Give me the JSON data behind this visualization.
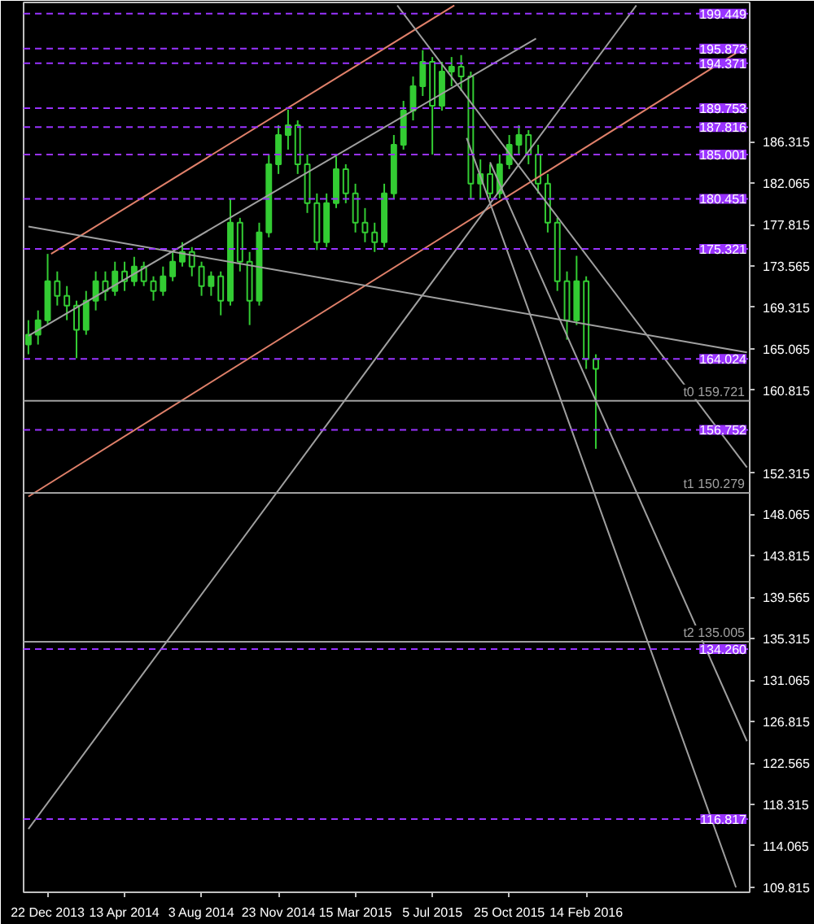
{
  "chart_data": {
    "type": "candlestick",
    "series": [
      {
        "color": "#33cc33",
        "x": [
          "2013-11-24",
          "2013-12-08",
          "2013-12-22",
          "2014-01-05",
          "2014-01-19",
          "2014-02-02",
          "2014-02-16",
          "2014-03-02",
          "2014-03-16",
          "2014-03-30",
          "2014-04-13",
          "2014-04-27",
          "2014-05-11",
          "2014-05-25",
          "2014-06-08",
          "2014-06-22",
          "2014-07-06",
          "2014-07-20",
          "2014-08-03",
          "2014-08-17",
          "2014-08-31",
          "2014-09-14",
          "2014-09-28",
          "2014-10-12",
          "2014-10-26",
          "2014-11-09",
          "2014-11-23",
          "2014-12-07",
          "2014-12-21",
          "2015-01-04",
          "2015-01-18",
          "2015-02-01",
          "2015-02-15",
          "2015-03-01",
          "2015-03-15",
          "2015-03-29",
          "2015-04-12",
          "2015-04-26",
          "2015-05-10",
          "2015-05-24",
          "2015-06-07",
          "2015-06-21",
          "2015-07-05",
          "2015-07-19",
          "2015-08-02",
          "2015-08-16",
          "2015-08-30",
          "2015-09-13",
          "2015-09-27",
          "2015-10-11",
          "2015-10-25",
          "2015-11-08",
          "2015-11-22",
          "2015-12-06",
          "2015-12-20",
          "2016-01-03",
          "2016-01-17",
          "2016-01-31",
          "2016-02-14",
          "2016-02-28"
        ],
        "ohlc": [
          [
            165.5,
            168,
            164.5,
            166.5
          ],
          [
            166.5,
            169,
            165.5,
            168
          ],
          [
            168,
            174.8,
            167.5,
            172
          ],
          [
            172,
            173,
            169.5,
            170.5
          ],
          [
            170.5,
            171.5,
            168,
            169.5
          ],
          [
            169.5,
            170,
            164.1,
            167
          ],
          [
            167,
            171,
            166.5,
            170
          ],
          [
            170,
            173,
            169,
            172
          ],
          [
            172,
            173,
            170,
            171
          ],
          [
            171,
            174,
            170.5,
            173
          ],
          [
            173,
            174,
            171,
            172
          ],
          [
            172,
            174.5,
            171.5,
            173.5
          ],
          [
            173.5,
            174,
            171.5,
            172
          ],
          [
            172,
            172.5,
            170,
            171
          ],
          [
            171,
            173.5,
            170.5,
            172.5
          ],
          [
            172.5,
            175,
            172,
            174
          ],
          [
            174,
            176,
            173.5,
            175
          ],
          [
            175,
            175.5,
            172.5,
            173.5
          ],
          [
            173.5,
            174,
            170.5,
            171.5
          ],
          [
            171.5,
            173,
            170.5,
            172.5
          ],
          [
            172.5,
            173,
            168.5,
            170
          ],
          [
            170,
            180.5,
            169.5,
            178
          ],
          [
            178,
            178.5,
            173,
            174
          ],
          [
            174,
            175,
            167.5,
            170
          ],
          [
            170,
            178,
            169.5,
            177
          ],
          [
            177,
            185,
            176.5,
            184
          ],
          [
            184,
            188,
            183,
            187
          ],
          [
            187,
            189.6,
            185.5,
            188
          ],
          [
            188,
            188.5,
            183,
            184
          ],
          [
            184,
            185,
            179,
            180
          ],
          [
            180,
            181,
            175.2,
            176
          ],
          [
            176,
            181,
            175.5,
            180
          ],
          [
            180,
            184.8,
            179.5,
            183.5
          ],
          [
            183.5,
            184,
            180,
            181
          ],
          [
            181,
            182,
            177,
            178
          ],
          [
            178,
            179.5,
            176,
            177
          ],
          [
            177,
            178,
            175,
            176
          ],
          [
            176,
            182,
            175.5,
            181
          ],
          [
            181,
            187,
            180.5,
            186
          ],
          [
            186,
            190.5,
            185.5,
            189.5
          ],
          [
            189.5,
            193,
            188.5,
            192
          ],
          [
            192,
            195.7,
            191,
            194.5
          ],
          [
            194.5,
            195,
            185,
            190
          ],
          [
            190,
            194.5,
            189.5,
            193.5
          ],
          [
            193.5,
            195,
            192,
            194
          ],
          [
            194,
            195.2,
            191.5,
            193
          ],
          [
            193,
            193.5,
            180.4,
            182
          ],
          [
            182,
            184.5,
            180.5,
            183
          ],
          [
            183,
            184,
            180.5,
            181
          ],
          [
            181,
            185,
            180.5,
            184
          ],
          [
            184,
            187,
            183.5,
            186
          ],
          [
            186,
            188,
            185,
            187
          ],
          [
            187,
            187.5,
            184,
            185
          ],
          [
            185,
            186,
            181,
            182
          ],
          [
            182,
            183,
            177,
            178
          ],
          [
            178,
            178.5,
            171,
            172
          ],
          [
            172,
            173,
            166,
            168
          ],
          [
            168,
            174.6,
            167.5,
            172
          ],
          [
            172,
            172.5,
            163,
            164
          ],
          [
            164,
            164.5,
            154.8,
            163
          ]
        ]
      },
      {
        "type": "line",
        "color": "#e0806a",
        "x": [
          "2013-12-27",
          "2015-08-06"
        ],
        "values": [
          174.8,
          200.3
        ]
      },
      {
        "type": "line",
        "color": "#e0806a",
        "x": [
          "2013-11-24",
          "2016-10-05"
        ],
        "values": [
          149.9,
          196.1
        ]
      },
      {
        "type": "line",
        "color": "#a0a0a0",
        "x": [
          "2013-11-24",
          "2015-12-03"
        ],
        "values": [
          166.4,
          196.9
        ]
      },
      {
        "type": "line",
        "color": "#a0a0a0",
        "x": [
          "2013-11-24",
          "2016-04-27"
        ],
        "values": [
          115.8,
          200.3
        ]
      },
      {
        "type": "line",
        "color": "#a0a0a0",
        "x": [
          "2015-05-15",
          "2016-10-05"
        ],
        "values": [
          200.3,
          152.9
        ]
      },
      {
        "type": "line",
        "color": "#a0a0a0",
        "x": [
          "2015-08-24",
          "2016-09-19"
        ],
        "values": [
          186.7,
          109.8
        ]
      },
      {
        "type": "line",
        "color": "#a0a0a0",
        "x": [
          "2015-09-27",
          "2016-10-05"
        ],
        "values": [
          184.2,
          124.8
        ]
      },
      {
        "type": "line",
        "color": "#a0a0a0",
        "x": [
          "2013-11-24",
          "2016-10-05"
        ],
        "values": [
          177.6,
          164.7
        ]
      }
    ],
    "ref_lines": [
      {
        "axis": "y",
        "value": 199.449,
        "label": "199.449",
        "color": "#9933ff",
        "line_style": "dashed"
      },
      {
        "axis": "y",
        "value": 195.873,
        "label": "195.873",
        "color": "#9933ff",
        "line_style": "dashed"
      },
      {
        "axis": "y",
        "value": 194.371,
        "label": "194.371",
        "color": "#9933ff",
        "line_style": "dashed"
      },
      {
        "axis": "y",
        "value": 189.753,
        "label": "189.753",
        "color": "#9933ff",
        "line_style": "dashed"
      },
      {
        "axis": "y",
        "value": 187.816,
        "label": "187.816",
        "color": "#9933ff",
        "line_style": "dashed"
      },
      {
        "axis": "y",
        "value": 185.001,
        "label": "185.001",
        "color": "#9933ff",
        "line_style": "dashed"
      },
      {
        "axis": "y",
        "value": 180.451,
        "label": "180.451",
        "color": "#9933ff",
        "line_style": "dashed"
      },
      {
        "axis": "y",
        "value": 175.321,
        "label": "175.321",
        "color": "#9933ff",
        "line_style": "dashed"
      },
      {
        "axis": "y",
        "value": 164.024,
        "label": "164.024",
        "color": "#9933ff",
        "line_style": "dashed"
      },
      {
        "axis": "y",
        "value": 156.752,
        "label": "156.752",
        "color": "#9933ff",
        "line_style": "dashed"
      },
      {
        "axis": "y",
        "value": 134.26,
        "label": "134.260",
        "color": "#9933ff",
        "line_style": "dashed"
      },
      {
        "axis": "y",
        "value": 116.817,
        "label": "116.817",
        "color": "#9933ff",
        "line_style": "dashed"
      },
      {
        "axis": "y",
        "value": 159.721,
        "label": "t0 159.721",
        "color": "#a0a0a0",
        "line_style": "solid"
      },
      {
        "axis": "y",
        "value": 150.279,
        "label": "t1 150.279",
        "color": "#a0a0a0",
        "line_style": "solid"
      },
      {
        "axis": "y",
        "value": 135.005,
        "label": "t2 135.005",
        "color": "#a0a0a0",
        "line_style": "solid"
      }
    ],
    "xlim": [
      "2013-11-17",
      "2016-10-09"
    ],
    "ylim": [
      109.3,
      200.6
    ],
    "xticks": [
      {
        "value": "2013-12-22",
        "label": "22 Dec 2013"
      },
      {
        "value": "2014-04-13",
        "label": "13 Apr 2014"
      },
      {
        "value": "2014-08-03",
        "label": "3 Aug 2014"
      },
      {
        "value": "2014-11-23",
        "label": "23 Nov 2014"
      },
      {
        "value": "2015-03-15",
        "label": "15 Mar 2015"
      },
      {
        "value": "2015-07-05",
        "label": "5 Jul 2015"
      },
      {
        "value": "2015-10-25",
        "label": "25 Oct 2015"
      },
      {
        "value": "2016-02-14",
        "label": "14 Feb 2016"
      }
    ],
    "yticks": [
      109.815,
      114.065,
      118.315,
      122.565,
      126.815,
      131.065,
      135.315,
      139.565,
      143.815,
      148.065,
      152.315,
      160.815,
      165.065,
      169.315,
      173.565,
      177.815,
      182.065,
      186.315
    ],
    "grid": false
  }
}
